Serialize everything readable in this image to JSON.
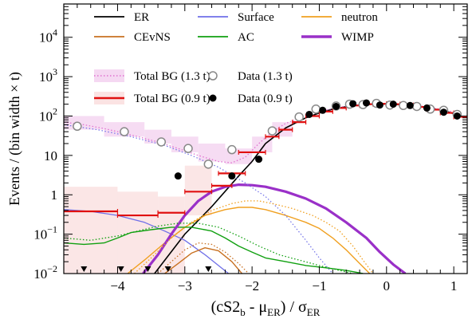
{
  "chart_data": {
    "type": "line",
    "xlabel": "(cS2_b - μ_ER) / σ_ER",
    "ylabel": "Events / (bin width × t)",
    "xlim": [
      -4.8,
      1.2
    ],
    "ylim": [
      0.01,
      70000
    ],
    "yscale": "log",
    "xticks": [
      -4,
      -3,
      -2,
      -1,
      0,
      1
    ],
    "xtick_labels": [
      "−4",
      "−3",
      "−2",
      "−1",
      "0",
      "1"
    ],
    "yticks": [
      {
        "value": 0.01,
        "base": "10",
        "exp": "−2",
        "plain": ""
      },
      {
        "value": 0.1,
        "base": "10",
        "exp": "−1",
        "plain": ""
      },
      {
        "value": 1,
        "base": "",
        "exp": "",
        "plain": "1"
      },
      {
        "value": 10,
        "base": "",
        "exp": "",
        "plain": "10"
      },
      {
        "value": 100,
        "base": "10",
        "exp": "2",
        "plain": ""
      },
      {
        "value": 1000,
        "base": "10",
        "exp": "3",
        "plain": ""
      },
      {
        "value": 10000,
        "base": "10",
        "exp": "4",
        "plain": ""
      }
    ],
    "legend_placement": "top",
    "legend": [
      {
        "label": "ER",
        "kind": "line",
        "color": "#000000"
      },
      {
        "label": "Surface",
        "kind": "line",
        "color": "#6f6fe8"
      },
      {
        "label": "neutron",
        "kind": "line",
        "color": "#f0a020"
      },
      {
        "label": "CEvNS",
        "kind": "line",
        "color": "#c87020"
      },
      {
        "label": "AC",
        "kind": "line",
        "color": "#10a010"
      },
      {
        "label": "WIMP",
        "kind": "thick",
        "color": "#9a30c8"
      },
      {
        "label": "Total BG (1.3 t)",
        "kind": "dotted-band",
        "color": "#e070d0"
      },
      {
        "label": "Data (1.3 t)",
        "kind": "open",
        "color": "#888888"
      },
      {
        "label": "Total BG (0.9 t)",
        "kind": "bar-band",
        "color": "#e01010"
      },
      {
        "label": "Data (0.9 t)",
        "kind": "filled",
        "color": "#000000"
      }
    ],
    "series": [
      {
        "name": "ER",
        "color": "#000000",
        "width": 1.6,
        "dash": "",
        "x": [
          -3.45,
          -3.0,
          -2.6,
          -2.2,
          -2.0,
          -1.8,
          -1.5,
          -1.2,
          -1.0,
          -0.8,
          -0.5,
          -0.2,
          0.0,
          0.3,
          0.6,
          0.9,
          1.1
        ],
        "y": [
          0.01,
          0.1,
          0.5,
          3,
          7,
          20,
          50,
          90,
          120,
          150,
          185,
          200,
          200,
          190,
          165,
          130,
          100
        ]
      },
      {
        "name": "Surface",
        "color": "#6f6fe8",
        "width": 1.3,
        "dash": "",
        "x": [
          -4.8,
          -4.4,
          -4.0,
          -3.6,
          -3.3,
          -3.0,
          -2.7,
          -2.5,
          -2.35
        ],
        "y": [
          0.42,
          0.38,
          0.3,
          0.2,
          0.12,
          0.07,
          0.03,
          0.016,
          0.01
        ]
      },
      {
        "name": "neutron",
        "color": "#f0a020",
        "width": 1.4,
        "dash": "",
        "x": [
          -3.85,
          -3.6,
          -3.3,
          -3.0,
          -2.7,
          -2.4,
          -2.2,
          -2.0,
          -1.8,
          -1.5,
          -1.2,
          -1.0,
          -0.8,
          -0.6,
          -0.4,
          -0.25
        ],
        "y": [
          0.01,
          0.022,
          0.06,
          0.15,
          0.3,
          0.42,
          0.48,
          0.48,
          0.42,
          0.3,
          0.2,
          0.14,
          0.08,
          0.04,
          0.018,
          0.01
        ]
      },
      {
        "name": "CEvNS",
        "color": "#c87020",
        "width": 1.4,
        "dash": "",
        "x": [
          -3.3,
          -3.1,
          -2.9,
          -2.7,
          -2.5,
          -2.3,
          -2.15
        ],
        "y": [
          0.01,
          0.018,
          0.033,
          0.045,
          0.038,
          0.02,
          0.01
        ]
      },
      {
        "name": "AC",
        "color": "#10a010",
        "width": 1.4,
        "dash": "",
        "x": [
          -4.8,
          -4.5,
          -4.2,
          -4.0,
          -3.8,
          -3.5,
          -3.2,
          -2.9,
          -2.6,
          -2.4,
          -2.2,
          -2.0,
          -1.8,
          -1.5,
          -1.2,
          -0.9,
          -0.6,
          -0.35
        ],
        "y": [
          0.06,
          0.055,
          0.06,
          0.08,
          0.11,
          0.13,
          0.15,
          0.15,
          0.12,
          0.08,
          0.05,
          0.035,
          0.025,
          0.02,
          0.016,
          0.014,
          0.012,
          0.01
        ]
      },
      {
        "name": "WIMP",
        "color": "#9a30c8",
        "width": 3.2,
        "dash": "",
        "x": [
          -3.62,
          -3.4,
          -3.2,
          -3.0,
          -2.8,
          -2.6,
          -2.4,
          -2.2,
          -2.0,
          -1.8,
          -1.5,
          -1.2,
          -0.9,
          -0.6,
          -0.3,
          -0.1,
          0.1,
          0.28
        ],
        "y": [
          0.01,
          0.03,
          0.1,
          0.3,
          0.7,
          1.2,
          1.6,
          1.8,
          1.75,
          1.6,
          1.2,
          0.8,
          0.45,
          0.2,
          0.08,
          0.035,
          0.017,
          0.01
        ]
      },
      {
        "name": "Total BG (1.3 t)",
        "color": "#e070d0",
        "width": 1.3,
        "dash": "1.5,2.5",
        "x": [
          -4.8,
          -4.5,
          -4.2,
          -4.0,
          -3.7,
          -3.4,
          -3.1,
          -2.8,
          -2.5,
          -2.3,
          -2.1,
          -1.9,
          -1.7,
          -1.5,
          -1.2,
          -1.0,
          -0.7,
          -0.4,
          -0.1,
          0.2,
          0.5,
          0.8,
          1.1
        ],
        "y": [
          70,
          60,
          48,
          40,
          30,
          22,
          15,
          10,
          7,
          6.5,
          9,
          20,
          40,
          65,
          100,
          130,
          170,
          195,
          205,
          200,
          180,
          150,
          115
        ]
      },
      {
        "name": "blue-dotted",
        "color": "#6f6fe8",
        "width": 1.2,
        "dash": "1.5,2.5",
        "x": [
          -4.8,
          -4.3,
          -3.8,
          -3.3,
          -2.9,
          -2.5,
          -2.1,
          -1.8,
          -1.5,
          -1.2,
          -1.0,
          -0.8
        ],
        "y": [
          60,
          45,
          30,
          18,
          10,
          5,
          2,
          0.9,
          0.3,
          0.07,
          0.025,
          0.01
        ]
      },
      {
        "name": "orange-dotted",
        "color": "#f0a020",
        "width": 1.3,
        "dash": "1.5,2.5",
        "x": [
          -3.75,
          -3.5,
          -3.2,
          -2.9,
          -2.6,
          -2.3,
          -2.1,
          -1.9,
          -1.7,
          -1.4,
          -1.1,
          -0.9,
          -0.7,
          -0.5,
          -0.35,
          -0.2
        ],
        "y": [
          0.01,
          0.025,
          0.08,
          0.2,
          0.4,
          0.6,
          0.7,
          0.7,
          0.6,
          0.45,
          0.3,
          0.2,
          0.12,
          0.05,
          0.022,
          0.01
        ]
      },
      {
        "name": "green-dotted",
        "color": "#10a010",
        "width": 1.3,
        "dash": "1.5,2.5",
        "x": [
          -4.8,
          -4.4,
          -4.0,
          -3.7,
          -3.4,
          -3.1,
          -2.8,
          -2.5,
          -2.2,
          -1.9,
          -1.6,
          -1.3,
          -1.0,
          -0.7,
          -0.5
        ],
        "y": [
          0.08,
          0.07,
          0.09,
          0.12,
          0.16,
          0.19,
          0.19,
          0.15,
          0.09,
          0.05,
          0.03,
          0.022,
          0.016,
          0.012,
          0.01
        ]
      },
      {
        "name": "brown-dotted",
        "color": "#c87020",
        "width": 1.3,
        "dash": "1.5,2.5",
        "x": [
          -3.4,
          -3.2,
          -3.0,
          -2.8,
          -2.6,
          -2.4,
          -2.2,
          -2.05
        ],
        "y": [
          0.01,
          0.02,
          0.04,
          0.06,
          0.055,
          0.035,
          0.018,
          0.01
        ]
      }
    ],
    "band_13": [
      {
        "x0": -4.8,
        "x1": -4.2,
        "lo": 45,
        "hi": 100
      },
      {
        "x0": -4.2,
        "x1": -3.6,
        "lo": 30,
        "hi": 70
      },
      {
        "x0": -3.6,
        "x1": -3.2,
        "lo": 20,
        "hi": 45
      },
      {
        "x0": -3.2,
        "x1": -2.8,
        "lo": 12,
        "hi": 30
      },
      {
        "x0": -2.8,
        "x1": -2.4,
        "lo": 7,
        "hi": 20
      },
      {
        "x0": -2.4,
        "x1": -2.0,
        "lo": 6,
        "hi": 15
      },
      {
        "x0": -2.0,
        "x1": -1.7,
        "lo": 12,
        "hi": 30
      },
      {
        "x0": -1.7,
        "x1": -1.4,
        "lo": 30,
        "hi": 70
      }
    ],
    "band_09": [
      {
        "x0": -4.8,
        "x1": -4.0,
        "lo": 0.01,
        "hi": 1.6
      },
      {
        "x0": -4.0,
        "x1": -3.4,
        "lo": 0.01,
        "hi": 1.2
      },
      {
        "x0": -3.4,
        "x1": -3.0,
        "lo": 0.01,
        "hi": 0.9
      },
      {
        "x0": -3.0,
        "x1": -2.6,
        "lo": 0.3,
        "hi": 5.5
      }
    ],
    "totbg_09_steps": [
      {
        "x0": -4.8,
        "x1": -4.0,
        "y": 0.38
      },
      {
        "x0": -4.0,
        "x1": -3.4,
        "y": 0.3
      },
      {
        "x0": -3.4,
        "x1": -3.0,
        "y": 0.35
      },
      {
        "x0": -3.0,
        "x1": -2.6,
        "y": 1.2
      },
      {
        "x0": -2.6,
        "x1": -2.3,
        "y": 1.7
      },
      {
        "x0": -2.5,
        "x1": -2.1,
        "y": 3.5
      },
      {
        "x0": -2.2,
        "x1": -1.8,
        "y": 12
      },
      {
        "x0": -1.8,
        "x1": -1.6,
        "y": 30
      },
      {
        "x0": -1.6,
        "x1": -1.4,
        "y": 45
      },
      {
        "x0": -1.4,
        "x1": -1.2,
        "y": 70
      },
      {
        "x0": -1.2,
        "x1": -1.0,
        "y": 100
      },
      {
        "x0": -1.0,
        "x1": -0.8,
        "y": 130
      },
      {
        "x0": -0.8,
        "x1": -0.6,
        "y": 160
      },
      {
        "x0": -0.6,
        "x1": -0.4,
        "y": 185
      },
      {
        "x0": -0.4,
        "x1": -0.2,
        "y": 200
      },
      {
        "x0": -0.2,
        "x1": 0.0,
        "y": 205
      },
      {
        "x0": 0.0,
        "x1": 0.2,
        "y": 200
      },
      {
        "x0": 0.2,
        "x1": 0.4,
        "y": 190
      },
      {
        "x0": 0.4,
        "x1": 0.6,
        "y": 170
      },
      {
        "x0": 0.6,
        "x1": 0.8,
        "y": 145
      },
      {
        "x0": 0.8,
        "x1": 1.0,
        "y": 120
      },
      {
        "x0": 1.0,
        "x1": 1.2,
        "y": 95
      }
    ],
    "data_13": {
      "x": [
        -4.6,
        -3.9,
        -3.35,
        -2.95,
        -2.65,
        -2.3,
        -1.7,
        -1.3,
        -1.05,
        -0.75,
        -0.55,
        -0.35,
        -0.15,
        0.05,
        0.25,
        0.45,
        0.65,
        0.85,
        1.05
      ],
      "y": [
        55,
        40,
        22,
        15,
        6,
        14,
        42,
        95,
        150,
        180,
        200,
        195,
        210,
        190,
        185,
        175,
        150,
        140,
        110
      ]
    },
    "data_09": {
      "x": [
        -3.1,
        -2.3,
        -1.9,
        -1.15,
        -0.95,
        -0.75,
        -0.5,
        -0.3,
        -0.1,
        0.1,
        0.35,
        0.6,
        0.85,
        1.05
      ],
      "y": [
        3,
        3,
        8,
        110,
        140,
        175,
        205,
        215,
        190,
        200,
        185,
        160,
        125,
        100
      ]
    },
    "upper_limits_x": [
      -4.5,
      -3.95,
      -3.55,
      -3.25,
      -2.65
    ]
  }
}
